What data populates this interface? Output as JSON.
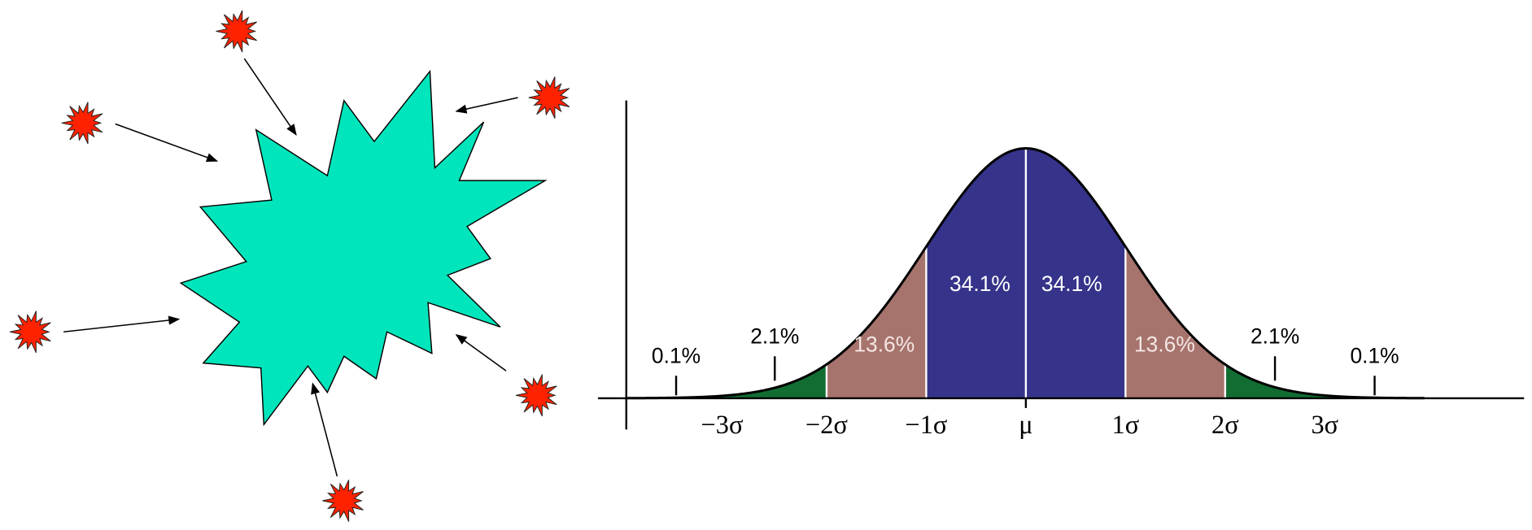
{
  "normal_distribution": {
    "region_labels": [
      "0.1%",
      "2.1%",
      "13.6%",
      "34.1%",
      "34.1%",
      "13.6%",
      "2.1%",
      "0.1%"
    ],
    "axis_labels": [
      "−3σ",
      "−2σ",
      "−1σ",
      "μ",
      "1σ",
      "2σ",
      "3σ"
    ]
  }
}
